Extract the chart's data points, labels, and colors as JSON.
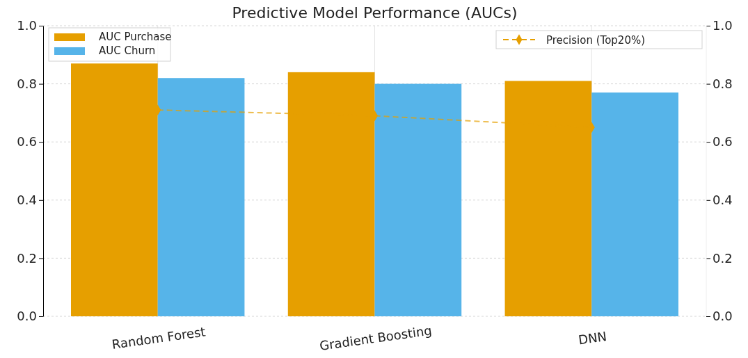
{
  "chart_data": {
    "type": "bar",
    "title": "Predictive Model Performance (AUCs)",
    "categories": [
      "Random Forest",
      "Gradient Boosting",
      "DNN"
    ],
    "series": [
      {
        "name": "AUC Purchase",
        "color": "#e69f00",
        "values": [
          0.87,
          0.84,
          0.81
        ]
      },
      {
        "name": "AUC Churn",
        "color": "#56b4e9",
        "values": [
          0.82,
          0.8,
          0.77
        ]
      },
      {
        "name": "Precision (Top20%)",
        "type": "line",
        "color": "#e69f00",
        "values": [
          0.71,
          0.69,
          0.65
        ],
        "marker": "diamond",
        "line_style": "dashed"
      }
    ],
    "ylim": [
      0,
      1
    ],
    "yticks": [
      {
        "value": 0,
        "label": "0.0"
      },
      0.2,
      0.4,
      0.6,
      0.8,
      {
        "value": 1,
        "label": "1.0"
      }
    ],
    "y2lim": [
      0,
      1
    ],
    "y2ticks": [
      {
        "value": 0,
        "label": "0.0"
      },
      0.2,
      0.4,
      0.6,
      0.8,
      {
        "value": 1,
        "label": "1.0"
      }
    ],
    "grid": true,
    "legend": "top"
  }
}
